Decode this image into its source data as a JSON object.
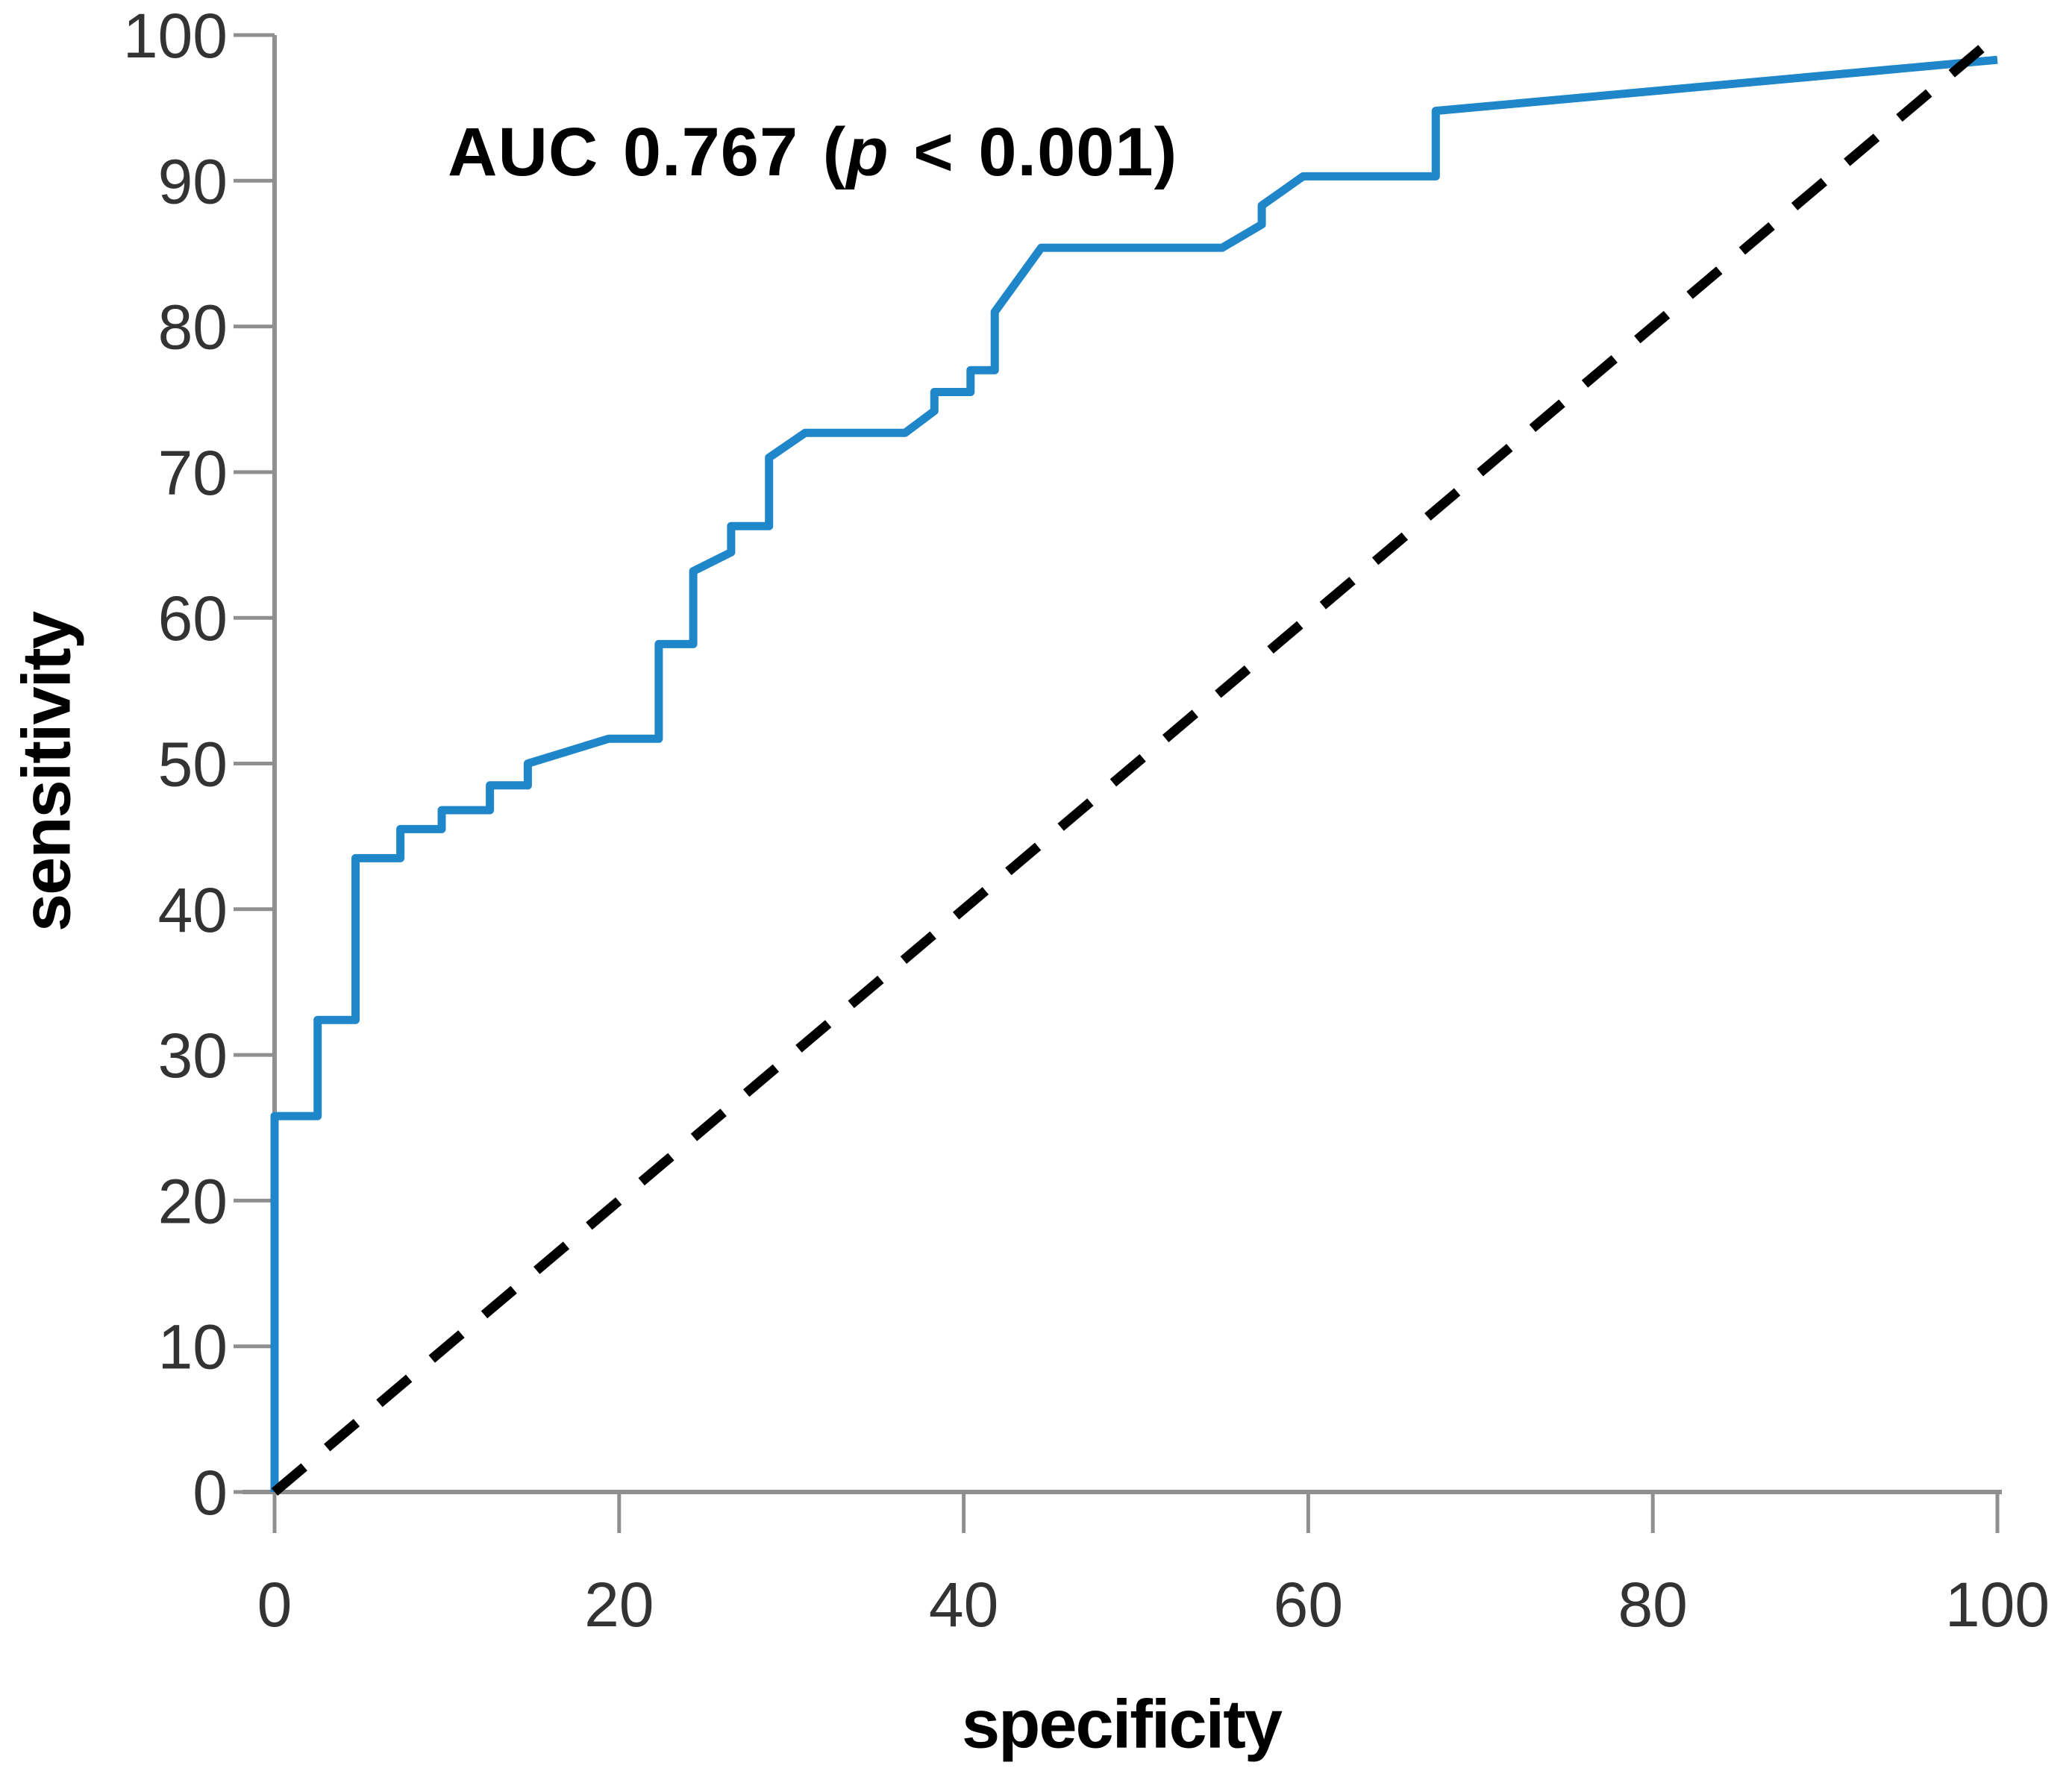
{
  "page": {
    "background": "#ffffff"
  },
  "annotation": {
    "prefix": "AUC 0.767 (",
    "p": "p",
    "suffix": " < 0.001)"
  },
  "axes": {
    "x_label": "specificity",
    "y_label": "sensitivity"
  },
  "colors": {
    "curve": "#1f86c9",
    "diagonal": "#000000",
    "axis": "#8f8f8f",
    "tick_label": "#333333",
    "axis_title": "#000000",
    "annotation": "#000000"
  },
  "chart_data": {
    "type": "line",
    "title": "",
    "xlabel": "specificity",
    "ylabel": "sensitivity",
    "xlim": [
      0,
      100
    ],
    "ylim": [
      0,
      100
    ],
    "x_ticks": [
      0,
      20,
      40,
      60,
      80,
      100
    ],
    "y_ticks": [
      0,
      10,
      20,
      30,
      40,
      50,
      60,
      70,
      80,
      90,
      100
    ],
    "grid": false,
    "legend_position": "none",
    "annotation_text": "AUC 0.767 (p < 0.001)",
    "series": [
      {
        "name": "ROC curve",
        "style": "solid",
        "color": "#1f86c9",
        "stroke_width": 11,
        "points": [
          [
            0,
            0
          ],
          [
            0,
            25.8
          ],
          [
            2.5,
            25.8
          ],
          [
            2.5,
            32.4
          ],
          [
            4.7,
            32.4
          ],
          [
            4.7,
            43.5
          ],
          [
            7.3,
            43.5
          ],
          [
            7.3,
            45.5
          ],
          [
            9.7,
            45.5
          ],
          [
            9.7,
            46.8
          ],
          [
            12.5,
            46.8
          ],
          [
            12.5,
            48.5
          ],
          [
            14.7,
            48.5
          ],
          [
            14.7,
            50.0
          ],
          [
            19.4,
            51.7
          ],
          [
            22.3,
            51.7
          ],
          [
            22.3,
            58.2
          ],
          [
            24.3,
            58.2
          ],
          [
            24.3,
            63.2
          ],
          [
            26.5,
            64.5
          ],
          [
            26.5,
            66.3
          ],
          [
            28.7,
            66.3
          ],
          [
            28.7,
            71.0
          ],
          [
            30.8,
            72.7
          ],
          [
            36.6,
            72.7
          ],
          [
            38.3,
            74.2
          ],
          [
            38.3,
            75.5
          ],
          [
            40.4,
            75.5
          ],
          [
            40.4,
            77.0
          ],
          [
            41.8,
            77.0
          ],
          [
            41.8,
            81.0
          ],
          [
            44.5,
            85.4
          ],
          [
            55.0,
            85.4
          ],
          [
            57.3,
            87.0
          ],
          [
            57.3,
            88.3
          ],
          [
            59.7,
            90.3
          ],
          [
            67.4,
            90.3
          ],
          [
            67.4,
            94.8
          ],
          [
            100,
            98.3
          ]
        ]
      },
      {
        "name": "chance diagonal",
        "style": "dashed",
        "color": "#000000",
        "stroke_width": 13,
        "dash": "52 40",
        "points": [
          [
            0,
            0
          ],
          [
            100,
            100
          ]
        ]
      }
    ]
  }
}
